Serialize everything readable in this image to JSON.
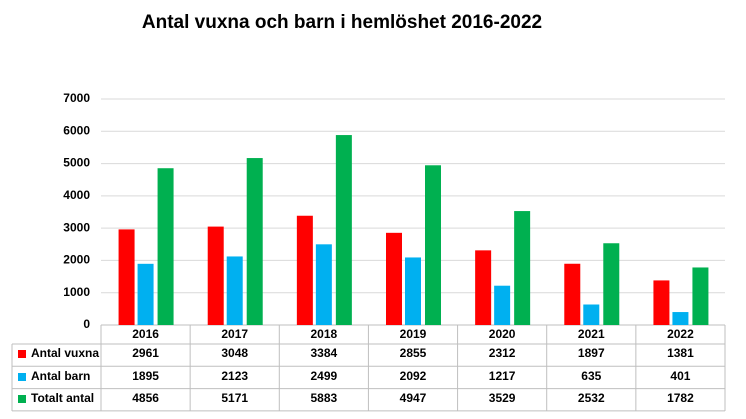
{
  "chart_data": {
    "type": "bar",
    "title": "Antal vuxna och barn i hemlöshet 2016-2022",
    "categories": [
      "2016",
      "2017",
      "2018",
      "2019",
      "2020",
      "2021",
      "2022"
    ],
    "series": [
      {
        "name": "Antal vuxna",
        "color": "#ff0000",
        "values": [
          2961,
          3048,
          3384,
          2855,
          2312,
          1897,
          1381
        ]
      },
      {
        "name": "Antal barn",
        "color": "#00b0f0",
        "values": [
          1895,
          2123,
          2499,
          2092,
          1217,
          635,
          401
        ]
      },
      {
        "name": "Totalt antal",
        "color": "#00b050",
        "values": [
          4856,
          5171,
          5883,
          4947,
          3529,
          2532,
          1782
        ]
      }
    ],
    "ylim": [
      0,
      7000
    ],
    "yticks": [
      0,
      1000,
      2000,
      3000,
      4000,
      5000,
      6000,
      7000
    ],
    "grid": true
  }
}
